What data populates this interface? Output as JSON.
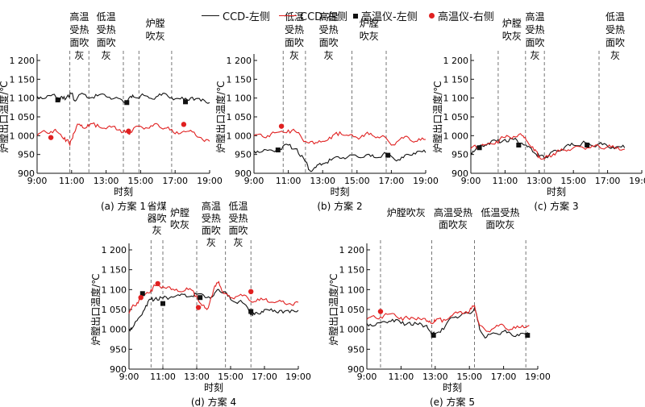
{
  "legend": {
    "ccd_left": "CCD-左侧",
    "ccd_right": "CCD-右侧",
    "pyro_left": "高温仪-左侧",
    "pyro_right": "高温仪-右侧"
  },
  "colors": {
    "left": "#111111",
    "right": "#e02020",
    "marker_left": "#111111",
    "marker_right": "#e02020"
  },
  "chart_data": [
    {
      "type": "line",
      "title": "(a) 方案 1",
      "xlabel": "时刻",
      "ylabel": "炉膛出口温度/℃",
      "xticks": [
        "9:00",
        "11:00",
        "13:00",
        "15:00",
        "17:00",
        "19:00"
      ],
      "yticks": [
        "900",
        "950",
        "1 000",
        "1 050",
        "1 100",
        "1 150",
        "1 200"
      ],
      "xlim": [
        9,
        19
      ],
      "ylim": [
        900,
        1200
      ],
      "events": [
        {
          "x": 10.9,
          "label": [
            "高温",
            "受热",
            "面吹",
            "灰"
          ]
        },
        {
          "x": 12.0,
          "label": [
            "低温",
            "受热",
            "面吹",
            "灰"
          ]
        },
        {
          "x": 14.0,
          "label": []
        },
        {
          "x": 14.9,
          "label": [
            "炉膛",
            "吹灰"
          ]
        },
        {
          "x": 16.8,
          "label": []
        }
      ],
      "series": [
        {
          "name": "CCD-左侧",
          "x": [
            9.0,
            9.5,
            10.0,
            10.3,
            10.5,
            10.8,
            11.0,
            11.2,
            11.5,
            12.0,
            12.5,
            13.0,
            13.5,
            14.0,
            14.3,
            14.6,
            15.0,
            15.5,
            16.0,
            16.5,
            17.0,
            17.5,
            18.0,
            18.5,
            19.0
          ],
          "y": [
            1105,
            1100,
            1110,
            1100,
            1098,
            1108,
            1112,
            1092,
            1110,
            1100,
            1106,
            1104,
            1100,
            1090,
            1098,
            1103,
            1106,
            1100,
            1105,
            1110,
            1098,
            1096,
            1102,
            1092,
            1088
          ]
        },
        {
          "name": "CCD-右侧",
          "x": [
            9.0,
            9.5,
            10.0,
            10.3,
            10.6,
            10.9,
            11.1,
            11.4,
            11.7,
            12.0,
            12.5,
            13.0,
            13.5,
            14.0,
            14.3,
            14.6,
            15.0,
            15.5,
            16.0,
            16.5,
            17.0,
            17.5,
            18.0,
            18.5,
            19.0
          ],
          "y": [
            1000,
            1010,
            1015,
            1005,
            995,
            975,
            1005,
            1030,
            1020,
            1025,
            1030,
            1018,
            1025,
            1010,
            1005,
            1020,
            1025,
            1020,
            1030,
            1020,
            1005,
            1012,
            1010,
            995,
            985
          ]
        },
        {
          "name": "高温仪-左侧",
          "x": [
            10.2,
            14.2,
            17.6
          ],
          "y": [
            1095,
            1088,
            1090
          ]
        },
        {
          "name": "高温仪-右侧",
          "x": [
            9.8,
            14.3,
            17.5
          ],
          "y": [
            995,
            1012,
            1030
          ]
        }
      ]
    },
    {
      "type": "line",
      "title": "(b) 方案 2",
      "xlabel": "时刻",
      "ylabel": "炉膛出口温度/℃",
      "xticks": [
        "9:00",
        "11:00",
        "13:00",
        "15:00",
        "17:00",
        "19:00"
      ],
      "yticks": [
        "900",
        "950",
        "1 000",
        "1 050",
        "1 100",
        "1 150",
        "1 200"
      ],
      "xlim": [
        9,
        19
      ],
      "ylim": [
        900,
        1200
      ],
      "events": [
        {
          "x": 10.7,
          "label": [
            "低温",
            "受热",
            "面吹",
            "灰"
          ]
        },
        {
          "x": 12.0,
          "label": [
            "高温",
            "受热",
            "面吹",
            "灰"
          ]
        },
        {
          "x": 14.7,
          "label": [
            "炉膛",
            "吹灰"
          ]
        },
        {
          "x": 16.7,
          "label": []
        }
      ],
      "series": [
        {
          "name": "CCD-左侧",
          "x": [
            9.0,
            9.5,
            10.0,
            10.5,
            11.0,
            11.5,
            12.0,
            12.3,
            12.6,
            13.0,
            13.5,
            14.0,
            14.5,
            15.0,
            15.5,
            16.0,
            16.5,
            17.0,
            17.5,
            18.0,
            18.5,
            19.0
          ],
          "y": [
            960,
            958,
            962,
            965,
            975,
            965,
            930,
            905,
            915,
            925,
            935,
            940,
            945,
            945,
            948,
            942,
            950,
            945,
            935,
            950,
            958,
            955
          ]
        },
        {
          "name": "CCD-右侧",
          "x": [
            9.0,
            9.5,
            10.0,
            10.5,
            11.0,
            11.5,
            12.0,
            12.5,
            13.0,
            13.5,
            14.0,
            14.5,
            15.0,
            15.5,
            16.0,
            16.5,
            17.0,
            17.5,
            18.0,
            18.5,
            19.0
          ],
          "y": [
            1000,
            998,
            1005,
            1010,
            1015,
            1008,
            985,
            978,
            985,
            992,
            1010,
            1000,
            995,
            1005,
            998,
            1000,
            975,
            990,
            995,
            985,
            990
          ]
        },
        {
          "name": "高温仪-左侧",
          "x": [
            10.4,
            16.8
          ],
          "y": [
            962,
            948
          ]
        },
        {
          "name": "高温仪-右侧",
          "x": [
            10.6
          ],
          "y": [
            1025
          ]
        }
      ]
    },
    {
      "type": "line",
      "title": "(c) 方案 3",
      "xlabel": "时刻",
      "ylabel": "炉膛出口温度/℃",
      "xticks": [
        "9:00",
        "11:00",
        "13:00",
        "15:00",
        "17:00",
        "19:00"
      ],
      "yticks": [
        "900",
        "950",
        "1 000",
        "1 050",
        "1 100",
        "1 150",
        "1 200"
      ],
      "xlim": [
        9,
        19
      ],
      "ylim": [
        900,
        1200
      ],
      "events": [
        {
          "x": 10.6,
          "label": [
            "炉膛",
            "吹灰"
          ]
        },
        {
          "x": 12.2,
          "label": [
            "高温",
            "受热",
            "面吹",
            "灰"
          ]
        },
        {
          "x": 13.3,
          "label": []
        },
        {
          "x": 16.5,
          "label": [
            "低温",
            "受热",
            "面吹",
            "灰"
          ]
        }
      ],
      "series": [
        {
          "name": "CCD-左侧",
          "x": [
            9.0,
            9.3,
            9.6,
            10.0,
            10.5,
            11.0,
            11.5,
            12.0,
            12.3,
            12.7,
            13.0,
            13.3,
            13.6,
            14.0,
            14.5,
            15.0,
            15.5,
            16.0,
            16.5,
            17.0,
            17.5,
            18.0
          ],
          "y": [
            955,
            965,
            975,
            980,
            985,
            990,
            990,
            980,
            970,
            955,
            945,
            940,
            950,
            960,
            970,
            975,
            980,
            975,
            978,
            972,
            970,
            968
          ]
        },
        {
          "name": "CCD-右侧",
          "x": [
            9.0,
            9.3,
            9.6,
            10.0,
            10.5,
            11.0,
            11.5,
            12.0,
            12.3,
            12.7,
            13.0,
            13.3,
            13.6,
            14.0,
            14.5,
            15.0,
            15.5,
            16.0,
            16.5,
            17.0,
            17.5,
            18.0
          ],
          "y": [
            965,
            970,
            972,
            978,
            985,
            995,
            998,
            1000,
            985,
            960,
            945,
            938,
            948,
            955,
            962,
            968,
            970,
            968,
            972,
            970,
            966,
            964
          ]
        },
        {
          "name": "高温仪-左侧",
          "x": [
            9.5,
            11.8,
            15.8
          ],
          "y": [
            968,
            975,
            975
          ]
        },
        {
          "name": "高温仪-右侧",
          "x": [],
          "y": []
        }
      ]
    },
    {
      "type": "line",
      "title": "(d) 方案 4",
      "xlabel": "时刻",
      "ylabel": "炉膛出口温度/℃",
      "xticks": [
        "9:00",
        "11:00",
        "13:00",
        "15:00",
        "17:00",
        "19:00"
      ],
      "yticks": [
        "900",
        "950",
        "1 000",
        "1 050",
        "1 100",
        "1 150",
        "1 200"
      ],
      "xlim": [
        9,
        19
      ],
      "ylim": [
        900,
        1200
      ],
      "events": [
        {
          "x": 10.3,
          "label": [
            "省煤",
            "器吹",
            "灰"
          ]
        },
        {
          "x": 11.0,
          "label": [
            "炉膛",
            "吹灰"
          ]
        },
        {
          "x": 13.0,
          "label": [
            "高温",
            "受热",
            "面吹",
            "灰"
          ]
        },
        {
          "x": 14.7,
          "label": [
            "低温",
            "受热",
            "面吹",
            "灰"
          ]
        },
        {
          "x": 16.2,
          "label": []
        }
      ],
      "series": [
        {
          "name": "CCD-左侧",
          "x": [
            9.0,
            9.3,
            9.6,
            10.0,
            10.3,
            10.6,
            11.0,
            11.5,
            12.0,
            12.5,
            13.0,
            13.5,
            14.0,
            14.3,
            14.6,
            15.0,
            15.5,
            16.0,
            16.3,
            16.6,
            17.0,
            17.5,
            18.0,
            18.5,
            19.0
          ],
          "y": [
            1000,
            1010,
            1030,
            1060,
            1075,
            1080,
            1078,
            1082,
            1085,
            1082,
            1088,
            1080,
            1085,
            1100,
            1095,
            1075,
            1070,
            1055,
            1035,
            1040,
            1050,
            1045,
            1048,
            1042,
            1048
          ]
        },
        {
          "name": "CCD-右侧",
          "x": [
            9.0,
            9.3,
            9.6,
            10.0,
            10.3,
            10.6,
            11.0,
            11.5,
            12.0,
            12.5,
            13.0,
            13.3,
            13.6,
            14.0,
            14.3,
            14.6,
            15.0,
            15.5,
            16.0,
            16.5,
            17.0,
            17.5,
            18.0,
            18.5,
            19.0
          ],
          "y": [
            1040,
            1060,
            1075,
            1090,
            1100,
            1110,
            1108,
            1100,
            1095,
            1100,
            1085,
            1060,
            1050,
            1100,
            1120,
            1090,
            1080,
            1085,
            1080,
            1070,
            1075,
            1068,
            1070,
            1065,
            1068
          ]
        },
        {
          "name": "高温仪-左侧",
          "x": [
            9.8,
            11.0,
            13.2,
            16.2
          ],
          "y": [
            1090,
            1065,
            1080,
            1045
          ]
        },
        {
          "name": "高温仪-右侧",
          "x": [
            9.7,
            10.7,
            13.1,
            16.2
          ],
          "y": [
            1080,
            1115,
            1055,
            1095
          ]
        }
      ]
    },
    {
      "type": "line",
      "title": "(e) 方案 5",
      "xlabel": "时刻",
      "ylabel": "炉膛出口温度/℃",
      "xticks": [
        "9:00",
        "11:00",
        "13:00",
        "15:00",
        "17:00",
        "19:00"
      ],
      "yticks": [
        "900",
        "950",
        "1 000",
        "1 050",
        "1 100",
        "1 150",
        "1 200"
      ],
      "xlim": [
        9,
        19
      ],
      "ylim": [
        900,
        1200
      ],
      "events": [
        {
          "x": 9.8,
          "label": [
            "炉膛吹灰"
          ]
        },
        {
          "x": 12.8,
          "label": [
            "高温受热",
            "面吹灰"
          ]
        },
        {
          "x": 15.3,
          "label": [
            "低温受热",
            "面吹灰"
          ]
        },
        {
          "x": 18.3,
          "label": []
        }
      ],
      "series": [
        {
          "name": "CCD-左侧",
          "x": [
            9.0,
            9.5,
            10.0,
            10.5,
            11.0,
            11.5,
            12.0,
            12.5,
            12.8,
            13.0,
            13.5,
            14.0,
            14.5,
            15.0,
            15.3,
            15.6,
            16.0,
            16.5,
            17.0,
            17.5,
            18.0,
            18.5
          ],
          "y": [
            1015,
            1010,
            1020,
            1025,
            1015,
            1018,
            1012,
            1010,
            985,
            990,
            1000,
            1030,
            1035,
            1040,
            1055,
            1000,
            980,
            990,
            995,
            985,
            990,
            985
          ]
        },
        {
          "name": "CCD-右侧",
          "x": [
            9.0,
            9.5,
            10.0,
            10.5,
            11.0,
            11.5,
            12.0,
            12.5,
            12.8,
            13.0,
            13.5,
            14.0,
            14.5,
            15.0,
            15.3,
            15.6,
            16.0,
            16.5,
            17.0,
            17.5,
            18.0,
            18.5
          ],
          "y": [
            1025,
            1030,
            1035,
            1040,
            1030,
            1025,
            1030,
            1020,
            1015,
            1020,
            1025,
            1035,
            1045,
            1045,
            1060,
            1010,
            995,
            1005,
            1010,
            1000,
            1005,
            1010
          ]
        },
        {
          "name": "高温仪-左侧",
          "x": [
            12.9,
            18.4
          ],
          "y": [
            985,
            985
          ]
        },
        {
          "name": "高温仪-右侧",
          "x": [
            9.8
          ],
          "y": [
            1045
          ]
        }
      ]
    }
  ]
}
